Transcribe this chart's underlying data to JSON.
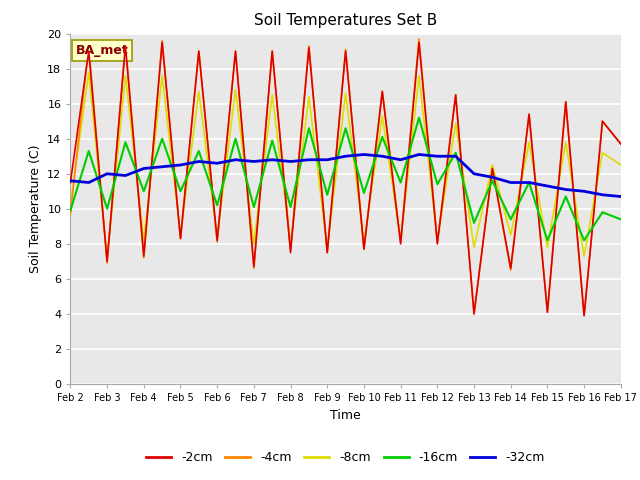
{
  "title": "Soil Temperatures Set B",
  "xlabel": "Time",
  "ylabel": "Soil Temperature (C)",
  "ylim": [
    0,
    20
  ],
  "yticks": [
    0,
    2,
    4,
    6,
    8,
    10,
    12,
    14,
    16,
    18,
    20
  ],
  "fig_bg_color": "#ffffff",
  "plot_bg_color": "#e8e8e8",
  "annotation": "BA_met",
  "legend_labels": [
    "-2cm",
    "-4cm",
    "-8cm",
    "-16cm",
    "-32cm"
  ],
  "legend_colors": [
    "#dd0000",
    "#ff8800",
    "#dddd00",
    "#00cc00",
    "#0000dd"
  ],
  "x_labels": [
    "Feb 2",
    "Feb 3",
    "Feb 4",
    "Feb 5",
    "Feb 6",
    "Feb 7",
    "Feb 8",
    "Feb 9",
    "Feb 10",
    "Feb 11",
    "Feb 12",
    "Feb 13",
    "Feb 14",
    "Feb 15",
    "Feb 16",
    "Feb 17"
  ],
  "series": {
    "cm_2": [
      11.5,
      19.0,
      7.0,
      19.3,
      7.3,
      19.5,
      8.3,
      19.0,
      8.2,
      19.0,
      6.7,
      19.0,
      7.5,
      19.2,
      7.5,
      19.0,
      7.7,
      16.7,
      8.0,
      19.5,
      8.0,
      16.5,
      4.0,
      12.3,
      6.6,
      15.4,
      4.1,
      16.1,
      3.9,
      15.0,
      13.7
    ],
    "cm_4": [
      9.7,
      19.3,
      6.9,
      19.4,
      7.2,
      19.6,
      8.3,
      19.0,
      8.1,
      19.0,
      6.6,
      19.0,
      7.7,
      19.3,
      7.5,
      19.1,
      7.7,
      16.7,
      8.1,
      19.7,
      8.1,
      16.5,
      4.0,
      12.3,
      6.5,
      15.4,
      4.1,
      16.1,
      3.9,
      15.0,
      13.7
    ],
    "cm_8": [
      10.2,
      17.8,
      7.2,
      17.6,
      8.2,
      17.6,
      8.5,
      16.7,
      8.4,
      16.8,
      8.0,
      16.5,
      8.0,
      16.4,
      7.7,
      16.6,
      8.1,
      15.3,
      8.2,
      17.6,
      8.2,
      14.9,
      7.8,
      12.5,
      8.5,
      13.8,
      7.8,
      13.8,
      7.3,
      13.2,
      12.5
    ],
    "cm_16": [
      9.9,
      13.3,
      10.0,
      13.8,
      11.0,
      14.0,
      11.0,
      13.3,
      10.2,
      14.0,
      10.1,
      13.9,
      10.1,
      14.6,
      10.8,
      14.6,
      10.9,
      14.1,
      11.5,
      15.2,
      11.4,
      13.2,
      9.2,
      11.6,
      9.4,
      11.5,
      8.2,
      10.7,
      8.2,
      9.8,
      9.4
    ],
    "cm_32": [
      11.6,
      11.5,
      12.0,
      11.9,
      12.3,
      12.4,
      12.5,
      12.7,
      12.6,
      12.8,
      12.7,
      12.8,
      12.7,
      12.8,
      12.8,
      13.0,
      13.1,
      13.0,
      12.8,
      13.1,
      13.0,
      13.0,
      12.0,
      11.8,
      11.5,
      11.5,
      11.3,
      11.1,
      11.0,
      10.8,
      10.7
    ]
  }
}
